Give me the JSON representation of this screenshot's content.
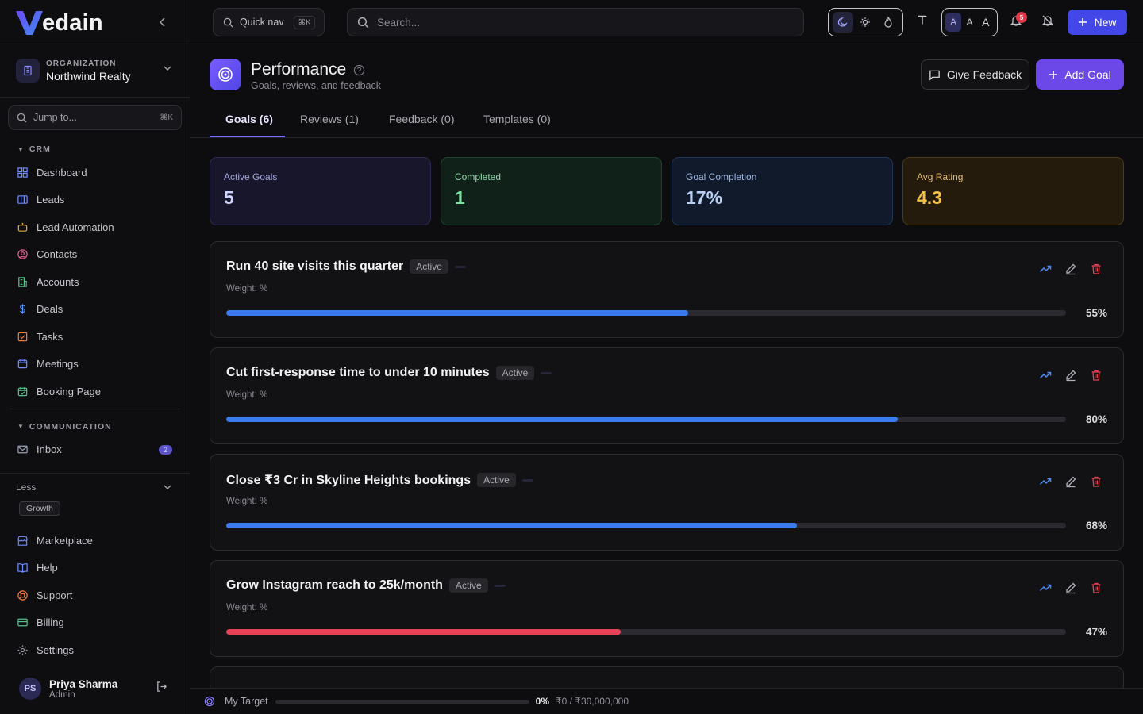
{
  "brand": {
    "logo_text": "edain"
  },
  "organization": {
    "label": "ORGANIZATION",
    "name": "Northwind Realty"
  },
  "sidebar": {
    "jump": {
      "placeholder": "Jump to...",
      "shortcut": "⌘K"
    },
    "crm": {
      "heading": "CRM",
      "items": [
        {
          "label": "Dashboard",
          "icon": "grid-icon",
          "color": "#6f8cff"
        },
        {
          "label": "Leads",
          "icon": "columns-icon",
          "color": "#6f8cff"
        },
        {
          "label": "Lead Automation",
          "icon": "robot-icon",
          "color": "#e3a93a"
        },
        {
          "label": "Contacts",
          "icon": "contact-icon",
          "color": "#e35d8a"
        },
        {
          "label": "Accounts",
          "icon": "building-icon",
          "color": "#52c48a"
        },
        {
          "label": "Deals",
          "icon": "dollar-icon",
          "color": "#5a9cff"
        },
        {
          "label": "Tasks",
          "icon": "task-icon",
          "color": "#f07a3a"
        },
        {
          "label": "Meetings",
          "icon": "calendar-icon",
          "color": "#6f8cff"
        },
        {
          "label": "Booking Page",
          "icon": "calendar-check-icon",
          "color": "#52c48a"
        }
      ]
    },
    "communication": {
      "heading": "COMMUNICATION",
      "items": [
        {
          "label": "Inbox",
          "icon": "mail-icon",
          "badge": "2",
          "color": "#9aa0b5"
        }
      ]
    },
    "less_label": "Less",
    "growth_tag": "Growth",
    "bottom_items": [
      {
        "label": "Marketplace",
        "icon": "store-icon",
        "color": "#6f8cff"
      },
      {
        "label": "Help",
        "icon": "book-icon",
        "color": "#6f8cff"
      },
      {
        "label": "Support",
        "icon": "lifebuoy-icon",
        "color": "#f07a3a"
      },
      {
        "label": "Billing",
        "icon": "card-icon",
        "color": "#52c48a"
      },
      {
        "label": "Settings",
        "icon": "gear-icon",
        "color": "#9a9aa3"
      }
    ]
  },
  "user": {
    "initials": "PS",
    "name": "Priya Sharma",
    "role": "Admin"
  },
  "topbar": {
    "quick_nav": "Quick nav",
    "quick_nav_kbd": "⌘K",
    "search_placeholder": "Search...",
    "font_sizes": [
      "A",
      "A",
      "A"
    ],
    "notification_count": "5",
    "new_label": "New"
  },
  "page": {
    "title": "Performance",
    "subtitle": "Goals, reviews, and feedback",
    "give_feedback": "Give Feedback",
    "add_goal": "Add Goal"
  },
  "tabs": [
    "Goals (6)",
    "Reviews (1)",
    "Feedback (0)",
    "Templates (0)"
  ],
  "stats": [
    {
      "label": "Active Goals",
      "value": "5"
    },
    {
      "label": "Completed",
      "value": "1"
    },
    {
      "label": "Goal Completion",
      "value": "17%"
    },
    {
      "label": "Avg Rating",
      "value": "4.3"
    }
  ],
  "goals": [
    {
      "title": "Run 40 site visits this quarter",
      "status": "Active",
      "weight": "Weight: %",
      "progress": 55,
      "progress_label": "55%",
      "color": "#3b7bf0"
    },
    {
      "title": "Cut first-response time to under 10 minutes",
      "status": "Active",
      "weight": "Weight: %",
      "progress": 80,
      "progress_label": "80%",
      "color": "#3b7bf0"
    },
    {
      "title": "Close ₹3 Cr in Skyline Heights bookings",
      "status": "Active",
      "weight": "Weight: %",
      "progress": 68,
      "progress_label": "68%",
      "color": "#3b7bf0"
    },
    {
      "title": "Grow Instagram reach to 25k/month",
      "status": "Active",
      "weight": "Weight: %",
      "progress": 47,
      "progress_label": "47%",
      "color": "#e84256"
    }
  ],
  "target_bar": {
    "label": "My Target",
    "progress": 0,
    "percent": "0%",
    "amount": "₹0 / ₹30,000,000"
  }
}
